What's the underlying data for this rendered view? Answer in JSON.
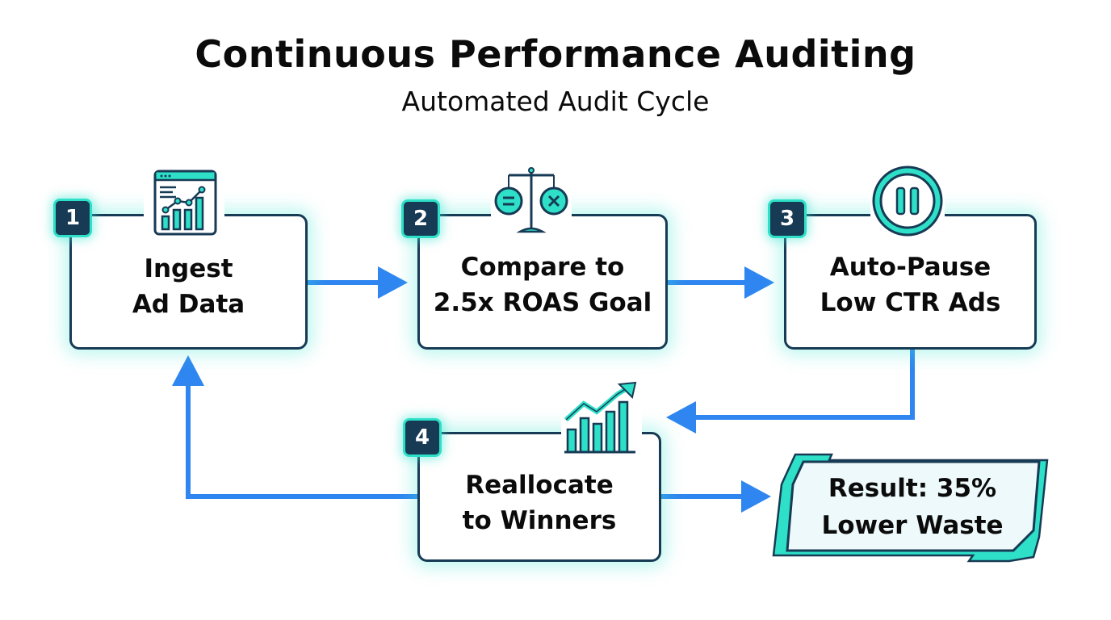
{
  "header": {
    "title": "Continuous Performance Auditing",
    "subtitle": "Automated Audit Cycle"
  },
  "steps": [
    {
      "number": "1",
      "line1": "Ingest",
      "line2": "Ad Data",
      "icon": "dashboard-chart-icon"
    },
    {
      "number": "2",
      "line1": "Compare to",
      "line2": "2.5x ROAS Goal",
      "icon": "balance-scale-icon"
    },
    {
      "number": "3",
      "line1": "Auto-Pause",
      "line2": "Low CTR Ads",
      "icon": "pause-icon"
    },
    {
      "number": "4",
      "line1": "Reallocate",
      "line2": "to Winners",
      "icon": "growth-chart-icon"
    }
  ],
  "result": {
    "line1": "Result: 35%",
    "line2": "Lower Waste"
  },
  "colors": {
    "arrow": "#2f86f0",
    "border": "#173a55",
    "accent": "#2ee0c8",
    "glow": "#3ce6d2"
  }
}
